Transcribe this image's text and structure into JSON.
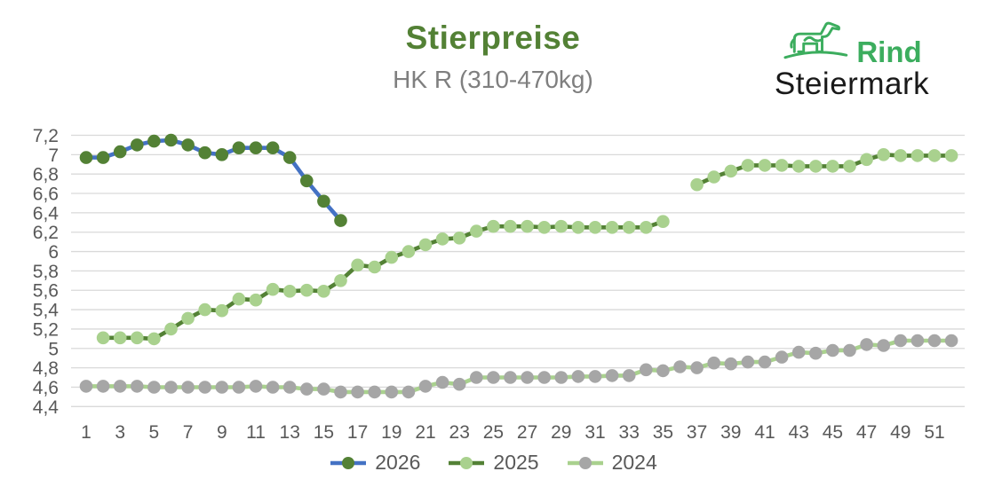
{
  "header": {
    "title": "Stierpreise",
    "subtitle": "HK R (310-470kg)",
    "title_color": "#538135",
    "subtitle_color": "#7f7f7f"
  },
  "logo": {
    "brand_top": "Rind",
    "brand_bottom": "Steiermark",
    "green": "#3cad5e",
    "black": "#191919"
  },
  "chart_data": {
    "type": "line",
    "title": "Stierpreise",
    "subtitle": "HK R (310-470kg)",
    "xlabel": "",
    "ylabel": "",
    "grid": true,
    "legend_position": "bottom",
    "decimal_separator": ",",
    "ylim": [
      4.4,
      7.2
    ],
    "ytick_step": 0.2,
    "ytick_labels": [
      "4,4",
      "4,6",
      "4,8",
      "5",
      "5,2",
      "5,4",
      "5,6",
      "5,8",
      "6",
      "6,2",
      "6,4",
      "6,6",
      "6,8",
      "7",
      "7,2"
    ],
    "xtick_labels": [
      "1",
      "3",
      "5",
      "7",
      "9",
      "11",
      "13",
      "15",
      "17",
      "19",
      "21",
      "23",
      "25",
      "27",
      "29",
      "31",
      "33",
      "35",
      "37",
      "39",
      "41",
      "43",
      "45",
      "47",
      "49",
      "51"
    ],
    "x_weeks": 52,
    "grid_color": "#d9d9d9",
    "axis_text_color": "#595959",
    "series": [
      {
        "name": "2026",
        "line_color": "#4472c4",
        "marker_color": "#538135",
        "values": [
          6.97,
          6.97,
          7.03,
          7.1,
          7.14,
          7.15,
          7.1,
          7.02,
          7.0,
          7.07,
          7.07,
          7.07,
          6.97,
          6.73,
          6.52,
          6.32
        ]
      },
      {
        "name": "2025",
        "line_color": "#538135",
        "marker_color": "#a9d18e",
        "values": [
          null,
          5.11,
          5.11,
          5.11,
          5.1,
          5.2,
          5.31,
          5.4,
          5.39,
          5.51,
          5.5,
          5.61,
          5.59,
          5.6,
          5.59,
          5.7,
          5.86,
          5.84,
          5.94,
          6.0,
          6.07,
          6.13,
          6.14,
          6.21,
          6.26,
          6.26,
          6.26,
          6.25,
          6.26,
          6.25,
          6.25,
          6.25,
          6.25,
          6.25,
          6.31,
          null,
          6.69,
          6.77,
          6.83,
          6.89,
          6.89,
          6.89,
          6.88,
          6.88,
          6.88,
          6.88,
          6.95,
          7.0,
          6.99,
          6.99,
          6.99,
          6.99
        ]
      },
      {
        "name": "2024",
        "line_color": "#a9d18e",
        "marker_color": "#a6a6a6",
        "values": [
          4.61,
          4.61,
          4.61,
          4.61,
          4.6,
          4.6,
          4.6,
          4.6,
          4.6,
          4.6,
          4.61,
          4.6,
          4.6,
          4.58,
          4.58,
          4.55,
          4.55,
          4.55,
          4.55,
          4.55,
          4.61,
          4.65,
          4.63,
          4.7,
          4.7,
          4.7,
          4.7,
          4.7,
          4.7,
          4.71,
          4.71,
          4.72,
          4.72,
          4.78,
          4.77,
          4.81,
          4.8,
          4.85,
          4.84,
          4.86,
          4.86,
          4.91,
          4.96,
          4.95,
          4.98,
          4.98,
          5.04,
          5.03,
          5.08,
          5.08,
          5.08,
          5.08
        ]
      }
    ]
  }
}
